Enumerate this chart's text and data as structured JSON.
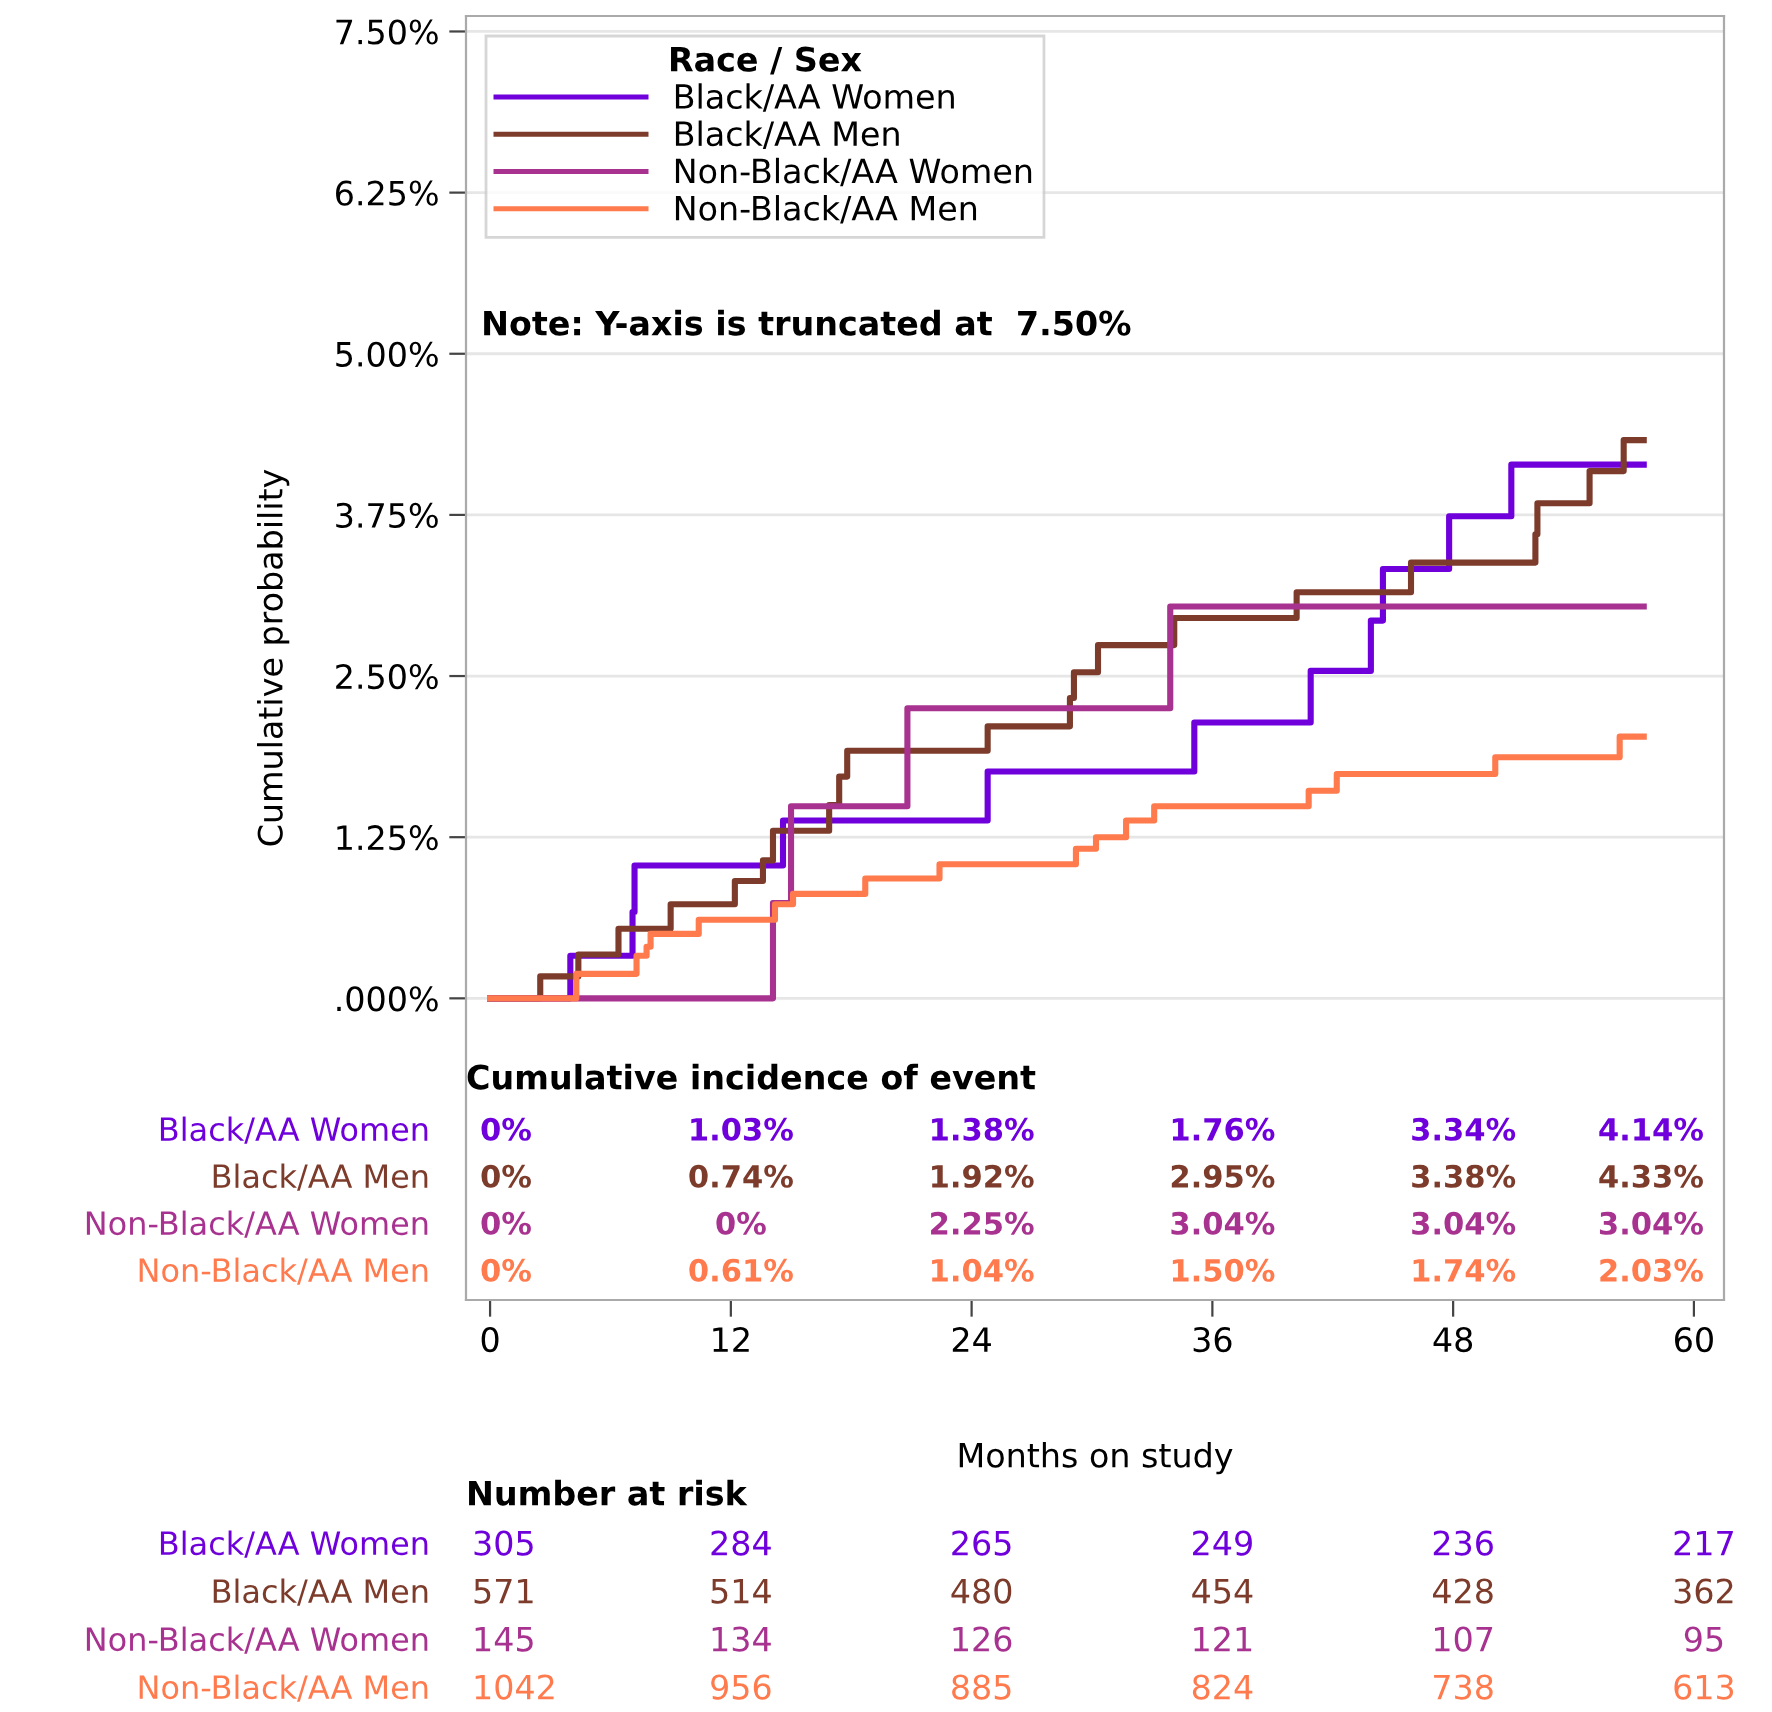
{
  "chart_data": {
    "type": "step",
    "xlabel": "Months on study",
    "ylabel": "Cumulative probability",
    "legend_title": "Race / Sex",
    "series": [
      {
        "name": "Black/AA Women",
        "color": "#6f00dc",
        "x": [
          0,
          4.0,
          7.1,
          7.2,
          14.6,
          24.8,
          35.1,
          40.9,
          43.9,
          44.5,
          47.8,
          50.9,
          57.5
        ],
        "values": [
          0,
          0.33,
          0.67,
          1.03,
          1.38,
          1.76,
          2.14,
          2.54,
          2.93,
          3.33,
          3.74,
          4.14,
          4.14
        ]
      },
      {
        "name": "Black/AA Men",
        "color": "#7d3c2b",
        "x": [
          0,
          2.5,
          4.4,
          6.4,
          9.0,
          12.2,
          13.6,
          14.1,
          16.9,
          17.4,
          17.8,
          24.8,
          28.9,
          29.1,
          30.3,
          34.1,
          40.2,
          45.9,
          52.1,
          52.2,
          54.8,
          56.5,
          57.5
        ],
        "values": [
          0,
          0.17,
          0.34,
          0.54,
          0.73,
          0.91,
          1.07,
          1.3,
          1.5,
          1.72,
          1.92,
          2.11,
          2.33,
          2.53,
          2.74,
          2.95,
          3.15,
          3.38,
          3.6,
          3.84,
          4.09,
          4.33,
          4.33
        ]
      },
      {
        "name": "Non-Black/AA Women",
        "color": "#a8328f",
        "x": [
          0,
          14.1,
          15.0,
          20.8,
          33.9,
          57.5
        ],
        "values": [
          0,
          0.74,
          1.49,
          2.25,
          3.04,
          3.04
        ]
      },
      {
        "name": "Non-Black/AA Men",
        "color": "#ff7a4d",
        "x": [
          0,
          4.3,
          7.3,
          7.8,
          8.0,
          10.4,
          14.2,
          15.1,
          18.7,
          22.4,
          29.2,
          30.2,
          31.7,
          33.1,
          40.8,
          42.2,
          50.1,
          56.3,
          57.5
        ],
        "values": [
          0,
          0.19,
          0.33,
          0.4,
          0.5,
          0.61,
          0.73,
          0.81,
          0.93,
          1.04,
          1.16,
          1.25,
          1.38,
          1.49,
          1.61,
          1.74,
          1.87,
          2.03,
          2.03
        ]
      }
    ],
    "xlim": [
      -1.2,
      61.5
    ],
    "xticks": [
      0,
      12,
      24,
      36,
      48,
      60
    ],
    "ylim": [
      -2.34,
      7.62
    ],
    "yticks": [
      {
        "value": 0,
        "label": ".000%"
      },
      {
        "value": 1.25,
        "label": "1.25%"
      },
      {
        "value": 2.5,
        "label": "2.50%"
      },
      {
        "value": 3.75,
        "label": "3.75%"
      },
      {
        "value": 5,
        "label": "5.00%"
      },
      {
        "value": 6.25,
        "label": "6.25%"
      },
      {
        "value": 7.5,
        "label": "7.50%"
      }
    ],
    "grid": "y",
    "legend": "top left",
    "line_style": "solid",
    "annotations": [
      "Note: Y-axis is truncated at  7.50%",
      "Cumulative incidence of event",
      "0%",
      "1.03%",
      "1.38%",
      "1.76%",
      "3.34%",
      "4.14%",
      "0%",
      "0.74%",
      "1.92%",
      "2.95%",
      "3.38%",
      "4.33%",
      "0%",
      "0%",
      "2.25%",
      "3.04%",
      "3.04%",
      "3.04%",
      "0%",
      "0.61%",
      "1.04%",
      "1.50%",
      "1.74%",
      "2.03%",
      "Number at risk",
      "305",
      "284",
      "265",
      "249",
      "236",
      "217",
      "571",
      "514",
      "480",
      "454",
      "428",
      "362",
      "145",
      "134",
      "126",
      "121",
      "107",
      "95",
      "1042",
      "956",
      "885",
      "824",
      "738",
      "613"
    ]
  }
}
